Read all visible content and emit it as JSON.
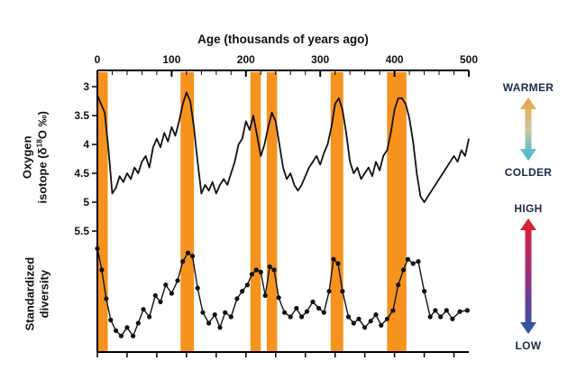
{
  "title": "Age (thousands of years ago)",
  "oxygen_label": {
    "line1": "Oxygen",
    "line2_pre": "isotope (δ",
    "sup": "18",
    "line2_post": "O ‰)"
  },
  "diversity_label": {
    "line1": "Standardized",
    "line2": "diversity"
  },
  "legend": {
    "warmer": "WARMER",
    "colder": "COLDER",
    "high": "HIGH",
    "low": "LOW"
  },
  "colors": {
    "band": "#F6921E",
    "curve": "#111111",
    "axis": "#000000",
    "warm_cold_gradient": [
      "#F0A23C",
      "#CEC49B",
      "#35BBD7"
    ],
    "high_low_gradient": [
      "#E01F26",
      "#97307F",
      "#2856A8"
    ]
  },
  "axes": {
    "x": {
      "major_ticks": [
        0,
        100,
        200,
        300,
        400,
        500
      ],
      "minor_step": 20,
      "range": [
        0,
        500
      ]
    },
    "oxygen_y": {
      "ticks": [
        3,
        3.5,
        4,
        4.5,
        5,
        5.5
      ],
      "range": [
        3,
        5.5
      ],
      "inverted": true
    },
    "diversity_y": {
      "range": [
        0,
        1
      ],
      "tick_labels_shown": false
    }
  },
  "highlight_bands": {
    "color": "#F6921E",
    "x_ranges": [
      [
        0,
        14
      ],
      [
        112,
        130
      ],
      [
        206,
        220
      ],
      [
        228,
        242
      ],
      [
        314,
        331
      ],
      [
        390,
        416
      ]
    ]
  },
  "chart_data": [
    {
      "type": "line",
      "name": "oxygen-isotope",
      "xlabel": "Age (thousands of years ago)",
      "ylabel": "Oxygen isotope (δ18O ‰)",
      "xlim": [
        0,
        500
      ],
      "ylim": [
        3,
        5.5
      ],
      "y_axis_inverted": true,
      "x": [
        0,
        5,
        10,
        15,
        20,
        25,
        30,
        35,
        40,
        45,
        50,
        55,
        60,
        65,
        70,
        75,
        80,
        85,
        90,
        95,
        100,
        105,
        110,
        115,
        120,
        125,
        130,
        135,
        140,
        145,
        150,
        155,
        160,
        165,
        170,
        175,
        180,
        185,
        190,
        195,
        200,
        205,
        210,
        215,
        220,
        225,
        230,
        235,
        240,
        245,
        250,
        255,
        260,
        265,
        270,
        275,
        280,
        285,
        290,
        295,
        300,
        305,
        310,
        315,
        320,
        325,
        330,
        335,
        340,
        345,
        350,
        355,
        360,
        365,
        370,
        375,
        380,
        385,
        390,
        395,
        400,
        405,
        410,
        415,
        420,
        425,
        430,
        435,
        440,
        445,
        450,
        455,
        460,
        465,
        470,
        475,
        480,
        485,
        490,
        495,
        500
      ],
      "y": [
        3.15,
        3.3,
        3.45,
        4.1,
        4.85,
        4.75,
        4.55,
        4.65,
        4.5,
        4.6,
        4.4,
        4.5,
        4.3,
        4.2,
        4.4,
        4.05,
        3.9,
        4.05,
        3.8,
        3.95,
        3.7,
        3.85,
        3.6,
        3.3,
        3.1,
        3.25,
        3.7,
        4.3,
        4.85,
        4.7,
        4.8,
        4.65,
        4.85,
        4.7,
        4.6,
        4.7,
        4.5,
        4.3,
        4.0,
        3.9,
        3.6,
        3.75,
        3.5,
        3.85,
        4.2,
        4.0,
        3.7,
        3.45,
        3.6,
        4.0,
        4.4,
        4.6,
        4.5,
        4.7,
        4.8,
        4.7,
        4.55,
        4.4,
        4.3,
        4.2,
        4.35,
        4.15,
        4.0,
        3.7,
        3.3,
        3.2,
        3.4,
        3.8,
        4.3,
        4.5,
        4.4,
        4.6,
        4.5,
        4.4,
        4.55,
        4.3,
        4.45,
        4.2,
        4.1,
        3.8,
        3.4,
        3.2,
        3.2,
        3.3,
        3.55,
        3.95,
        4.5,
        4.9,
        5.0,
        4.9,
        4.8,
        4.7,
        4.6,
        4.5,
        4.4,
        4.3,
        4.2,
        4.3,
        4.1,
        4.2,
        3.9
      ]
    },
    {
      "type": "scatter",
      "name": "standardized-diversity",
      "ylabel": "Standardized diversity",
      "xlim": [
        0,
        500
      ],
      "ylim": [
        0,
        1
      ],
      "x": [
        0,
        6,
        12,
        18,
        25,
        32,
        40,
        48,
        55,
        62,
        70,
        78,
        85,
        92,
        100,
        108,
        115,
        122,
        128,
        135,
        142,
        150,
        158,
        165,
        172,
        180,
        188,
        195,
        202,
        208,
        214,
        220,
        226,
        232,
        238,
        244,
        252,
        260,
        268,
        275,
        282,
        290,
        298,
        305,
        312,
        318,
        324,
        330,
        338,
        345,
        352,
        360,
        368,
        375,
        382,
        390,
        398,
        405,
        412,
        418,
        425,
        432,
        440,
        448,
        455,
        462,
        470,
        478,
        488,
        498
      ],
      "y": [
        0.92,
        0.72,
        0.45,
        0.25,
        0.15,
        0.1,
        0.18,
        0.1,
        0.22,
        0.35,
        0.28,
        0.48,
        0.42,
        0.58,
        0.5,
        0.62,
        0.8,
        0.88,
        0.85,
        0.55,
        0.32,
        0.22,
        0.3,
        0.18,
        0.32,
        0.28,
        0.45,
        0.52,
        0.58,
        0.68,
        0.72,
        0.7,
        0.48,
        0.75,
        0.72,
        0.46,
        0.32,
        0.28,
        0.36,
        0.28,
        0.33,
        0.42,
        0.36,
        0.32,
        0.52,
        0.82,
        0.78,
        0.52,
        0.28,
        0.22,
        0.26,
        0.18,
        0.24,
        0.3,
        0.2,
        0.26,
        0.34,
        0.58,
        0.72,
        0.82,
        0.78,
        0.8,
        0.52,
        0.28,
        0.34,
        0.28,
        0.34,
        0.26,
        0.33,
        0.34
      ]
    }
  ]
}
